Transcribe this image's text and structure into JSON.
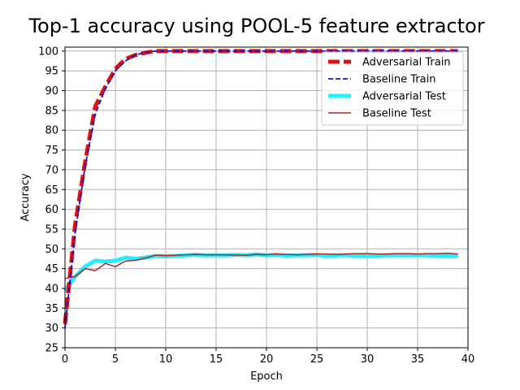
{
  "chart_data": {
    "type": "line",
    "title": "Top-1 accuracy using POOL-5 feature extractor",
    "xlabel": "Epoch",
    "ylabel": "Accuracy",
    "xlim": [
      0,
      40
    ],
    "ylim": [
      25,
      101
    ],
    "xticks": [
      0,
      5,
      10,
      15,
      20,
      25,
      30,
      35,
      40
    ],
    "yticks": [
      25,
      30,
      35,
      40,
      45,
      50,
      55,
      60,
      65,
      70,
      75,
      80,
      85,
      90,
      95,
      100
    ],
    "grid": true,
    "legend_position": "top-right",
    "x": [
      0,
      1,
      2,
      3,
      4,
      5,
      6,
      7,
      8,
      9,
      10,
      11,
      12,
      13,
      14,
      15,
      16,
      17,
      18,
      19,
      20,
      21,
      22,
      23,
      24,
      25,
      26,
      27,
      28,
      29,
      30,
      31,
      32,
      33,
      34,
      35,
      36,
      37,
      38,
      39
    ],
    "series": [
      {
        "name": "Adversarial Train",
        "color": "#dd1111",
        "style": "dashed-thick",
        "values": [
          31,
          56,
          72,
          86,
          91,
          95.5,
          98,
          99,
          99.6,
          100,
          100,
          100,
          100,
          100,
          100,
          100,
          100,
          100,
          100,
          100,
          100,
          100,
          100,
          100,
          100,
          100,
          100,
          100,
          100,
          100,
          100,
          100,
          100,
          100,
          100,
          100,
          100,
          100,
          100,
          100
        ]
      },
      {
        "name": "Baseline Train",
        "color": "#1111cc",
        "style": "dashed",
        "values": [
          30,
          54,
          71,
          84,
          90.5,
          95,
          97.5,
          99,
          99.7,
          100,
          100,
          100,
          100,
          100,
          100,
          100,
          100,
          100,
          100,
          100,
          100,
          100,
          100,
          100,
          100,
          100,
          100,
          100,
          100,
          100,
          100,
          100,
          100,
          100,
          100,
          100,
          100,
          100,
          100,
          100
        ]
      },
      {
        "name": "Adversarial Test",
        "color": "#22eeff",
        "style": "solid-thick",
        "values": [
          39.5,
          43,
          45.5,
          47,
          46.8,
          47,
          47.8,
          47.5,
          47.8,
          48.2,
          48.1,
          48.2,
          48.4,
          48.5,
          48.4,
          48.4,
          48.4,
          48.5,
          48.4,
          48.6,
          48.4,
          48.5,
          48.3,
          48.4,
          48.4,
          48.5,
          48.2,
          48.4,
          48.4,
          48.3,
          48.3,
          48.3,
          48.4,
          48.4,
          48.4,
          48.4,
          48.4,
          48.3,
          48.3,
          48.3
        ]
      },
      {
        "name": "Baseline Test",
        "color": "#a52a2a",
        "style": "solid",
        "values": [
          42.5,
          43,
          45,
          44.5,
          46.3,
          45.5,
          46.9,
          47.1,
          47.7,
          48.4,
          48.3,
          48.4,
          48.5,
          48.6,
          48.5,
          48.5,
          48.5,
          48.4,
          48.4,
          48.6,
          48.5,
          48.7,
          48.6,
          48.5,
          48.6,
          48.7,
          48.7,
          48.6,
          48.7,
          48.8,
          48.8,
          48.7,
          48.7,
          48.8,
          48.8,
          48.7,
          48.8,
          48.8,
          48.9,
          48.7
        ]
      }
    ]
  }
}
